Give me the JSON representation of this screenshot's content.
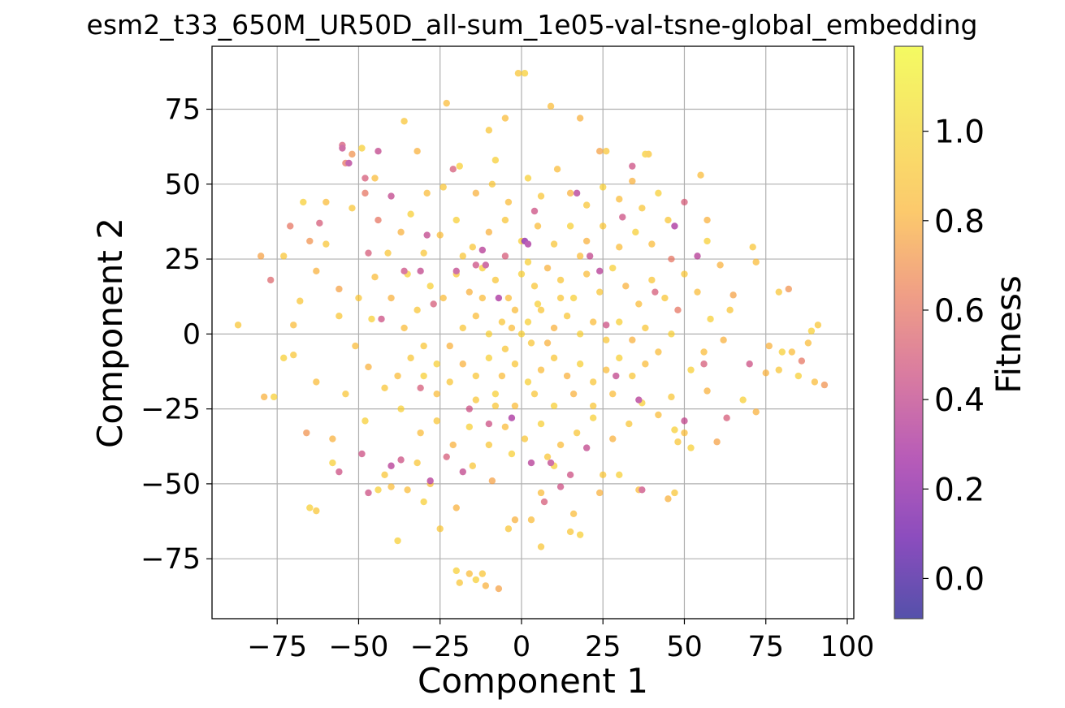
{
  "chart_data": {
    "type": "scatter",
    "title": "esm2_t33_650M_UR50D_all-sum_1e05-val-tsne-global_embedding",
    "xlabel": "Component 1",
    "ylabel": "Component 2",
    "xlim": [
      -95,
      102
    ],
    "ylim": [
      -95,
      96
    ],
    "xticks": [
      -75,
      -50,
      -25,
      0,
      25,
      50,
      75,
      100
    ],
    "yticks": [
      -75,
      -50,
      -25,
      0,
      25,
      50,
      75
    ],
    "xtick_labels": [
      "−75",
      "−50",
      "−25",
      "0",
      "25",
      "50",
      "75",
      "100"
    ],
    "ytick_labels": [
      "−75",
      "−50",
      "−25",
      "0",
      "25",
      "50",
      "75"
    ],
    "grid": true,
    "colormap": "plasma",
    "colorbar": {
      "label": "Fitness",
      "range": [
        -0.09,
        1.19
      ],
      "ticks": [
        0.0,
        0.2,
        0.4,
        0.6,
        0.8,
        1.0
      ],
      "tick_labels": [
        "0.0",
        "0.2",
        "0.4",
        "0.6",
        "0.8",
        "1.0"
      ]
    },
    "points": [
      [
        -87,
        3,
        0.9
      ],
      [
        -80,
        26,
        0.75
      ],
      [
        -77,
        18,
        0.55
      ],
      [
        -79,
        -21,
        0.8
      ],
      [
        -76,
        -21,
        0.95
      ],
      [
        -73,
        26,
        0.9
      ],
      [
        -71,
        36,
        0.6
      ],
      [
        -70,
        3,
        0.85
      ],
      [
        -70,
        -7,
        0.9
      ],
      [
        -67,
        44,
        0.95
      ],
      [
        -65,
        31,
        0.7
      ],
      [
        -65,
        -58,
        0.95
      ],
      [
        -63,
        -59,
        0.9
      ],
      [
        -63,
        21,
        0.8
      ],
      [
        -60,
        30,
        0.9
      ],
      [
        -58,
        -43,
        0.95
      ],
      [
        -56,
        6,
        0.9
      ],
      [
        -55,
        63,
        0.5
      ],
      [
        -54,
        57,
        0.6
      ],
      [
        -52,
        60,
        0.7
      ],
      [
        -49,
        62,
        0.95
      ],
      [
        -48,
        47,
        0.6
      ],
      [
        -45,
        52,
        0.85
      ],
      [
        -44,
        -52,
        0.95
      ],
      [
        -42,
        -47,
        0.9
      ],
      [
        -40,
        -51,
        0.85
      ],
      [
        -38,
        -69,
        0.95
      ],
      [
        -36,
        71,
        0.9
      ],
      [
        -32,
        61,
        0.8
      ],
      [
        -23,
        77,
        0.85
      ],
      [
        -20,
        -79,
        0.95
      ],
      [
        -19,
        -83,
        0.9
      ],
      [
        -16,
        -80,
        0.85
      ],
      [
        -14,
        -82,
        0.95
      ],
      [
        -12,
        -80,
        0.9
      ],
      [
        -11,
        -84,
        0.8
      ],
      [
        -7,
        -85,
        0.75
      ],
      [
        -10,
        68,
        0.9
      ],
      [
        -5,
        72,
        0.85
      ],
      [
        -8,
        58,
        0.95
      ],
      [
        -1,
        87,
        0.9
      ],
      [
        1,
        87,
        0.95
      ],
      [
        9,
        76,
        0.85
      ],
      [
        18,
        72,
        0.8
      ],
      [
        24,
        61,
        0.75
      ],
      [
        26,
        61,
        0.9
      ],
      [
        38,
        60,
        0.95
      ],
      [
        39,
        60,
        0.9
      ],
      [
        55,
        53,
        0.85
      ],
      [
        50,
        44,
        0.5
      ],
      [
        45,
        38,
        0.9
      ],
      [
        57,
        38,
        0.8
      ],
      [
        57,
        31,
        0.95
      ],
      [
        71,
        29,
        0.9
      ],
      [
        72,
        24,
        0.85
      ],
      [
        61,
        23,
        0.8
      ],
      [
        65,
        13,
        0.75
      ],
      [
        79,
        14,
        0.9
      ],
      [
        82,
        15,
        0.7
      ],
      [
        89,
        1,
        0.95
      ],
      [
        91,
        3,
        0.9
      ],
      [
        88,
        -3,
        0.85
      ],
      [
        76,
        -4,
        0.8
      ],
      [
        80,
        -6,
        0.95
      ],
      [
        83,
        -6,
        0.85
      ],
      [
        86,
        -9,
        0.6
      ],
      [
        79,
        -12,
        0.9
      ],
      [
        75,
        -13,
        0.8
      ],
      [
        85,
        -14,
        0.95
      ],
      [
        90,
        -16,
        0.85
      ],
      [
        93,
        -17,
        0.7
      ],
      [
        68,
        -22,
        0.95
      ],
      [
        72,
        -26,
        0.8
      ],
      [
        60,
        -36,
        0.75
      ],
      [
        47,
        -32,
        0.95
      ],
      [
        48,
        -36,
        0.9
      ],
      [
        50,
        -33,
        0.85
      ],
      [
        52,
        -38,
        0.95
      ],
      [
        47,
        -53,
        0.9
      ],
      [
        45,
        -55,
        0.8
      ],
      [
        36,
        -52,
        0.85
      ],
      [
        30,
        -47,
        0.95
      ],
      [
        25,
        -47,
        0.9
      ],
      [
        24,
        -53,
        0.8
      ],
      [
        18,
        -67,
        0.95
      ],
      [
        15,
        -66,
        0.9
      ],
      [
        16,
        -60,
        0.85
      ],
      [
        10,
        -44,
        0.95
      ],
      [
        8,
        -41,
        0.9
      ],
      [
        6,
        -53,
        0.85
      ],
      [
        7,
        -56,
        0.5
      ],
      [
        6,
        -71,
        0.9
      ],
      [
        3,
        -62,
        0.85
      ],
      [
        -2,
        -62,
        0.8
      ],
      [
        -4,
        -65,
        0.9
      ],
      [
        -3,
        -40,
        0.95
      ],
      [
        -9,
        -49,
        0.75
      ],
      [
        -15,
        -44,
        0.9
      ],
      [
        -20,
        -58,
        0.8
      ],
      [
        -25,
        -65,
        0.9
      ],
      [
        -28,
        -50,
        0.85
      ],
      [
        -30,
        -56,
        0.95
      ],
      [
        -32,
        -43,
        0.9
      ],
      [
        -35,
        -52,
        0.85
      ],
      [
        -48,
        -29,
        0.95
      ],
      [
        -54,
        -20,
        0.9
      ],
      [
        -58,
        -35,
        0.8
      ],
      [
        -63,
        -16,
        0.85
      ],
      [
        -68,
        11,
        0.9
      ],
      [
        -73,
        -8,
        0.95
      ],
      [
        -66,
        -33,
        0.7
      ],
      [
        -56,
        15,
        0.75
      ],
      [
        -52,
        42,
        0.9
      ],
      [
        -60,
        44,
        0.85
      ],
      [
        -44,
        38,
        0.6
      ],
      [
        -41,
        27,
        0.9
      ],
      [
        -37,
        34,
        0.8
      ],
      [
        -34,
        40,
        0.95
      ],
      [
        -29,
        47,
        0.85
      ],
      [
        -24,
        49,
        0.9
      ],
      [
        -19,
        56,
        0.95
      ],
      [
        -14,
        47,
        0.8
      ],
      [
        -9,
        50,
        0.9
      ],
      [
        -4,
        44,
        0.85
      ],
      [
        2,
        52,
        0.95
      ],
      [
        6,
        46,
        0.9
      ],
      [
        11,
        55,
        0.85
      ],
      [
        15,
        47,
        0.8
      ],
      [
        20,
        43,
        0.9
      ],
      [
        25,
        49,
        0.95
      ],
      [
        30,
        45,
        0.85
      ],
      [
        34,
        51,
        0.8
      ],
      [
        37,
        42,
        0.9
      ],
      [
        42,
        47,
        0.95
      ],
      [
        40,
        30,
        0.85
      ],
      [
        46,
        25,
        0.6
      ],
      [
        50,
        20,
        0.9
      ],
      [
        54,
        14,
        0.85
      ],
      [
        58,
        5,
        0.95
      ],
      [
        62,
        -2,
        0.8
      ],
      [
        64,
        8,
        0.9
      ],
      [
        56,
        -6,
        0.85
      ],
      [
        52,
        -12,
        0.95
      ],
      [
        57,
        -19,
        0.8
      ],
      [
        46,
        -21,
        0.9
      ],
      [
        42,
        -27,
        0.85
      ],
      [
        37,
        -23,
        0.95
      ],
      [
        33,
        -30,
        0.9
      ],
      [
        28,
        -35,
        0.8
      ],
      [
        22,
        -28,
        0.95
      ],
      [
        17,
        -33,
        0.9
      ],
      [
        12,
        -37,
        0.85
      ],
      [
        6,
        -30,
        0.95
      ],
      [
        1,
        -35,
        0.9
      ],
      [
        -5,
        -31,
        0.85
      ],
      [
        -10,
        -37,
        0.9
      ],
      [
        -16,
        -31,
        0.95
      ],
      [
        -21,
        -37,
        0.8
      ],
      [
        -26,
        -29,
        0.9
      ],
      [
        -31,
        -33,
        0.85
      ],
      [
        -37,
        -25,
        0.95
      ],
      [
        -42,
        -18,
        0.9
      ],
      [
        -47,
        -11,
        0.8
      ],
      [
        -51,
        -4,
        0.85
      ],
      [
        -46,
        5,
        0.95
      ],
      [
        -50,
        12,
        0.9
      ],
      [
        -45,
        19,
        0.85
      ],
      [
        -40,
        12,
        0.8
      ],
      [
        -35,
        20,
        0.95
      ],
      [
        -30,
        27,
        0.9
      ],
      [
        -25,
        33,
        0.85
      ],
      [
        -20,
        38,
        0.95
      ],
      [
        -15,
        29,
        0.9
      ],
      [
        -10,
        34,
        0.8
      ],
      [
        -5,
        38,
        0.9
      ],
      [
        0,
        31,
        0.95
      ],
      [
        5,
        36,
        0.85
      ],
      [
        10,
        30,
        0.9
      ],
      [
        15,
        36,
        0.95
      ],
      [
        20,
        31,
        0.8
      ],
      [
        25,
        36,
        0.9
      ],
      [
        30,
        29,
        0.85
      ],
      [
        35,
        34,
        0.95
      ],
      [
        40,
        18,
        0.9
      ],
      [
        36,
        10,
        0.85
      ],
      [
        32,
        16,
        0.8
      ],
      [
        28,
        22,
        0.95
      ],
      [
        24,
        14,
        0.9
      ],
      [
        20,
        20,
        0.85
      ],
      [
        16,
        12,
        0.95
      ],
      [
        12,
        18,
        0.9
      ],
      [
        8,
        22,
        0.8
      ],
      [
        4,
        16,
        0.9
      ],
      [
        0,
        20,
        0.95
      ],
      [
        -4,
        12,
        0.85
      ],
      [
        -8,
        18,
        0.9
      ],
      [
        -12,
        22,
        0.95
      ],
      [
        -16,
        14,
        0.8
      ],
      [
        -20,
        20,
        0.9
      ],
      [
        -24,
        12,
        0.85
      ],
      [
        -28,
        16,
        0.95
      ],
      [
        -32,
        8,
        0.9
      ],
      [
        -36,
        2,
        0.85
      ],
      [
        -30,
        -4,
        0.9
      ],
      [
        -26,
        -10,
        0.95
      ],
      [
        -22,
        -4,
        0.8
      ],
      [
        -18,
        2,
        0.9
      ],
      [
        -14,
        6,
        0.85
      ],
      [
        -10,
        0,
        0.95
      ],
      [
        -6,
        4,
        0.9
      ],
      [
        -2,
        8,
        0.85
      ],
      [
        2,
        4,
        0.95
      ],
      [
        6,
        8,
        0.9
      ],
      [
        10,
        2,
        0.8
      ],
      [
        14,
        6,
        0.9
      ],
      [
        18,
        0,
        0.95
      ],
      [
        22,
        4,
        0.85
      ],
      [
        26,
        -2,
        0.9
      ],
      [
        30,
        4,
        0.95
      ],
      [
        34,
        -2,
        0.8
      ],
      [
        38,
        2,
        0.9
      ],
      [
        42,
        -6,
        0.85
      ],
      [
        46,
        0,
        0.95
      ],
      [
        48,
        8,
        0.6
      ],
      [
        44,
        12,
        0.9
      ],
      [
        38,
        -10,
        0.85
      ],
      [
        34,
        -14,
        0.9
      ],
      [
        30,
        -8,
        0.95
      ],
      [
        26,
        -12,
        0.85
      ],
      [
        22,
        -16,
        0.9
      ],
      [
        18,
        -10,
        0.95
      ],
      [
        14,
        -14,
        0.8
      ],
      [
        10,
        -8,
        0.9
      ],
      [
        6,
        -12,
        0.85
      ],
      [
        2,
        -16,
        0.95
      ],
      [
        -2,
        -10,
        0.9
      ],
      [
        -6,
        -14,
        0.85
      ],
      [
        -10,
        -8,
        0.95
      ],
      [
        -14,
        -14,
        0.9
      ],
      [
        -18,
        -10,
        0.8
      ],
      [
        -22,
        -16,
        0.9
      ],
      [
        -26,
        -20,
        0.85
      ],
      [
        -30,
        -14,
        0.95
      ],
      [
        -34,
        -8,
        0.9
      ],
      [
        -38,
        -14,
        0.85
      ],
      [
        -14,
        -22,
        0.9
      ],
      [
        -8,
        -20,
        0.95
      ],
      [
        -2,
        -24,
        0.85
      ],
      [
        4,
        -20,
        0.9
      ],
      [
        10,
        -24,
        0.95
      ],
      [
        16,
        -20,
        0.8
      ],
      [
        22,
        -24,
        0.9
      ],
      [
        28,
        -20,
        0.85
      ],
      [
        0,
        0,
        0.95
      ],
      [
        3,
        -3,
        0.9
      ],
      [
        -3,
        2,
        0.85
      ],
      [
        5,
        10,
        0.95
      ],
      [
        -5,
        -5,
        0.9
      ],
      [
        8,
        -3,
        0.8
      ],
      [
        12,
        12,
        0.9
      ],
      [
        -12,
        12,
        0.85
      ],
      [
        -8,
        -24,
        0.9
      ],
      [
        2,
        24,
        0.95
      ],
      [
        18,
        26,
        0.85
      ],
      [
        -18,
        26,
        0.9
      ],
      [
        1,
        31,
        0.2
      ],
      [
        2,
        30,
        0.3
      ],
      [
        -3,
        -28,
        0.3
      ],
      [
        3,
        -43,
        0.35
      ],
      [
        9,
        -43,
        0.4
      ],
      [
        15,
        -47,
        0.45
      ],
      [
        -28,
        -49,
        0.35
      ],
      [
        -37,
        -42,
        0.45
      ],
      [
        -20,
        21,
        0.4
      ],
      [
        -12,
        28,
        0.35
      ],
      [
        21,
        26,
        0.4
      ],
      [
        24,
        21,
        0.35
      ],
      [
        26,
        3,
        0.45
      ],
      [
        -7,
        12,
        0.3
      ],
      [
        -11,
        23,
        0.4
      ],
      [
        -36,
        21,
        0.45
      ],
      [
        -5,
        26,
        0.5
      ],
      [
        -40,
        -44,
        0.35
      ],
      [
        -47,
        27,
        0.5
      ],
      [
        -31,
        21,
        0.4
      ],
      [
        -47,
        -53,
        0.45
      ],
      [
        -53,
        57,
        0.35
      ],
      [
        -55,
        62,
        0.4
      ],
      [
        -62,
        37,
        0.5
      ],
      [
        37,
        -52,
        0.45
      ],
      [
        34,
        56,
        0.45
      ],
      [
        17,
        47,
        0.35
      ],
      [
        -14,
        23,
        0.45
      ],
      [
        -48,
        52,
        0.5
      ],
      [
        36,
        -22,
        0.35
      ],
      [
        -18,
        -46,
        0.4
      ],
      [
        -43,
        5,
        0.45
      ],
      [
        47,
        36,
        0.3
      ],
      [
        50,
        -29,
        0.4
      ],
      [
        -23,
        -41,
        0.5
      ],
      [
        -49,
        -40,
        0.45
      ],
      [
        63,
        -28,
        0.5
      ],
      [
        70,
        -10,
        0.45
      ],
      [
        -29,
        33,
        0.4
      ],
      [
        54,
        26,
        0.35
      ],
      [
        -56,
        -46,
        0.45
      ],
      [
        -44,
        61,
        0.4
      ],
      [
        29,
        -14,
        0.4
      ],
      [
        -10,
        -30,
        0.45
      ],
      [
        41,
        14,
        0.5
      ],
      [
        -16,
        -25,
        0.45
      ],
      [
        20,
        -38,
        0.4
      ],
      [
        -31,
        -18,
        0.5
      ],
      [
        4,
        41,
        0.45
      ],
      [
        -21,
        55,
        0.5
      ],
      [
        31,
        39,
        0.45
      ],
      [
        -40,
        46,
        0.4
      ],
      [
        56,
        -10,
        0.5
      ],
      [
        12,
        -51,
        0.45
      ],
      [
        -27,
        10,
        0.5
      ]
    ]
  }
}
